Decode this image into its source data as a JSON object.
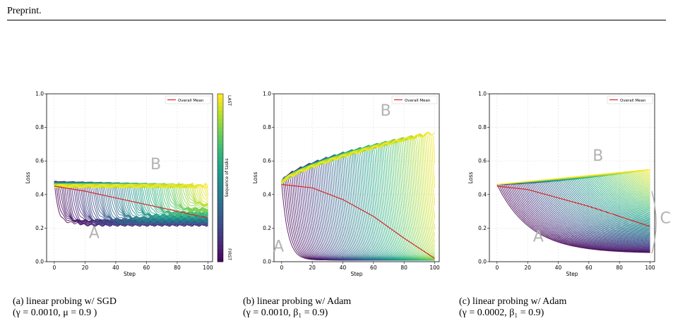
{
  "header": {
    "label": "Preprint."
  },
  "colorbar": {
    "label": "Sequence of tasks",
    "top_label": "LAST",
    "bottom_label": "FIRST"
  },
  "legend_label": "Overall Mean",
  "colors": {
    "mean_line": "#d62728",
    "annotation_gray": "#b3b3b3",
    "grid": "#e0e0e0",
    "colormap": "viridis"
  },
  "chart_data": [
    {
      "type": "line",
      "xlabel": "Step",
      "ylabel": "Loss",
      "xlim": [
        -5,
        103
      ],
      "ylim": [
        0,
        1.0
      ],
      "xticks": [
        0,
        20,
        40,
        60,
        80,
        100
      ],
      "yticks": [
        0.0,
        0.2,
        0.4,
        0.6,
        0.8,
        1.0
      ],
      "ytick_labels": [
        "0.0",
        "0.2",
        "0.4",
        "0.6",
        "0.8",
        "1.0"
      ],
      "legend": "top-right",
      "grid": true,
      "series": [
        {
          "name": "Overall Mean",
          "x": [
            0,
            20,
            40,
            60,
            80,
            100
          ],
          "y": [
            0.45,
            0.42,
            0.38,
            0.34,
            0.3,
            0.26
          ]
        }
      ],
      "task_curves_summary": {
        "start_loss": 0.47,
        "plateau_loss_first_task": 0.23,
        "plateau_loss_last_task": 0.47
      },
      "annotations": [
        {
          "text": "A",
          "x": 26,
          "y": 0.14
        },
        {
          "text": "B",
          "x": 66,
          "y": 0.55
        }
      ],
      "has_colorbar": true,
      "caption": "(a) linear probing w/ SGD",
      "caption_math": "(γ = 0.0010, μ = 0.9 )"
    },
    {
      "type": "line",
      "xlabel": "Step",
      "ylabel": "Loss",
      "xlim": [
        -5,
        103
      ],
      "ylim": [
        0,
        1.0
      ],
      "xticks": [
        0,
        20,
        40,
        60,
        80,
        100
      ],
      "yticks": [
        0.0,
        0.2,
        0.4,
        0.6,
        0.8,
        1.0
      ],
      "ytick_labels": [
        "0.0",
        "0.2",
        "0.4",
        "0.6",
        "0.8",
        "1.0"
      ],
      "legend": "top-right",
      "grid": true,
      "series": [
        {
          "name": "Overall Mean",
          "x": [
            0,
            20,
            40,
            60,
            80,
            100
          ],
          "y": [
            0.46,
            0.44,
            0.37,
            0.27,
            0.14,
            0.02
          ]
        }
      ],
      "task_curves_summary": {
        "start_loss": 0.46,
        "peak_loss_last_tasks": 0.78,
        "drop_to": 0.01
      },
      "annotations": [
        {
          "text": "A",
          "x": -2,
          "y": 0.06
        },
        {
          "text": "B",
          "x": 68,
          "y": 0.87
        }
      ],
      "has_colorbar": false,
      "caption": "(b) linear probing w/ Adam",
      "caption_math": "(γ = 0.0010, β₁ = 0.9)"
    },
    {
      "type": "line",
      "xlabel": "Step",
      "ylabel": "Loss",
      "xlim": [
        -5,
        103
      ],
      "ylim": [
        0,
        1.0
      ],
      "xticks": [
        0,
        20,
        40,
        60,
        80,
        100
      ],
      "yticks": [
        0.0,
        0.2,
        0.4,
        0.6,
        0.8,
        1.0
      ],
      "ytick_labels": [
        "0.0",
        "0.2",
        "0.4",
        "0.6",
        "0.8",
        "1.0"
      ],
      "legend": "top-right",
      "grid": true,
      "series": [
        {
          "name": "Overall Mean",
          "x": [
            0,
            20,
            40,
            60,
            80,
            100
          ],
          "y": [
            0.45,
            0.43,
            0.38,
            0.33,
            0.27,
            0.21
          ]
        }
      ],
      "task_curves_summary": {
        "start_loss": 0.46,
        "final_loss_first_task": 0.05,
        "peak_loss_last_tasks": 0.55
      },
      "annotations": [
        {
          "text": "A",
          "x": 27,
          "y": 0.12
        },
        {
          "text": "B",
          "x": 66,
          "y": 0.6
        },
        {
          "text": "C",
          "x": 110,
          "y": 0.23
        }
      ],
      "has_colorbar": false,
      "caption": "(c) linear probing w/ Adam",
      "caption_math": "(γ = 0.0002, β₁ = 0.9)"
    }
  ]
}
